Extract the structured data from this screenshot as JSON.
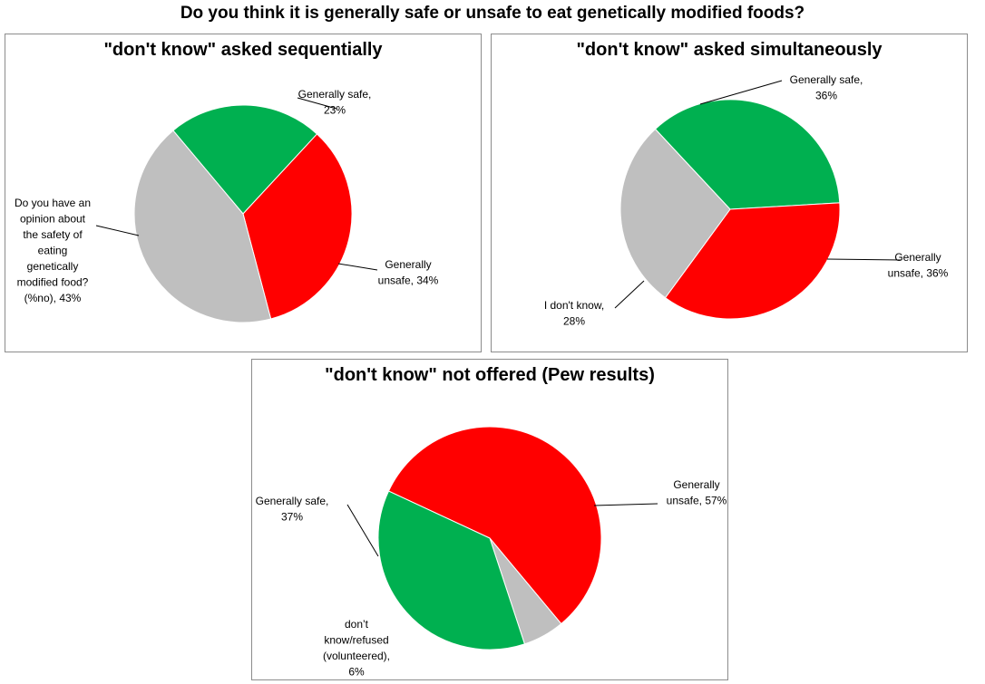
{
  "title": "Do you think it is generally safe or unsafe to eat genetically modified foods?",
  "chart_data": [
    {
      "type": "pie",
      "title": "\"don't know\" asked sequentially",
      "colors": {
        "safe": "#00b050",
        "unsafe": "#ff0000",
        "other": "#bfbfbf"
      },
      "slices": [
        {
          "label": "Generally safe, 23%",
          "value": 23,
          "color": "#00b050",
          "label_lines": [
            "Generally safe,",
            "23%"
          ]
        },
        {
          "label": "Generally unsafe, 34%",
          "value": 34,
          "color": "#ff0000",
          "label_lines": [
            "Generally",
            "unsafe, 34%"
          ]
        },
        {
          "label": "Do you have an opinion about the safety of eating genetically modified food? (%no), 43%",
          "value": 43,
          "color": "#bfbfbf",
          "label_lines": [
            "Do you have an",
            "opinion about",
            "the safety of",
            "eating",
            "genetically",
            "modified food?",
            "(%no), 43%"
          ]
        }
      ]
    },
    {
      "type": "pie",
      "title": "\"don't know\" asked simultaneously",
      "colors": {
        "safe": "#00b050",
        "unsafe": "#ff0000",
        "other": "#bfbfbf"
      },
      "slices": [
        {
          "label": "Generally safe, 36%",
          "value": 36,
          "color": "#00b050",
          "label_lines": [
            "Generally safe,",
            "36%"
          ]
        },
        {
          "label": "Generally unsafe, 36%",
          "value": 36,
          "color": "#ff0000",
          "label_lines": [
            "Generally",
            "unsafe, 36%"
          ]
        },
        {
          "label": "I don't know, 28%",
          "value": 28,
          "color": "#bfbfbf",
          "label_lines": [
            "I don't know,",
            "28%"
          ]
        }
      ]
    },
    {
      "type": "pie",
      "title": "\"don't know\" not offered (Pew results)",
      "colors": {
        "safe": "#00b050",
        "unsafe": "#ff0000",
        "other": "#bfbfbf"
      },
      "slices": [
        {
          "label": "Generally unsafe, 57%",
          "value": 57,
          "color": "#ff0000",
          "label_lines": [
            "Generally",
            "unsafe, 57%"
          ]
        },
        {
          "label": "don't know/refused (volunteered), 6%",
          "value": 6,
          "color": "#bfbfbf",
          "label_lines": [
            "don’t",
            "know/refused",
            "(volunteered),",
            "6%"
          ]
        },
        {
          "label": "Generally safe, 37%",
          "value": 37,
          "color": "#00b050",
          "label_lines": [
            "Generally safe,",
            "37%"
          ]
        }
      ]
    }
  ]
}
